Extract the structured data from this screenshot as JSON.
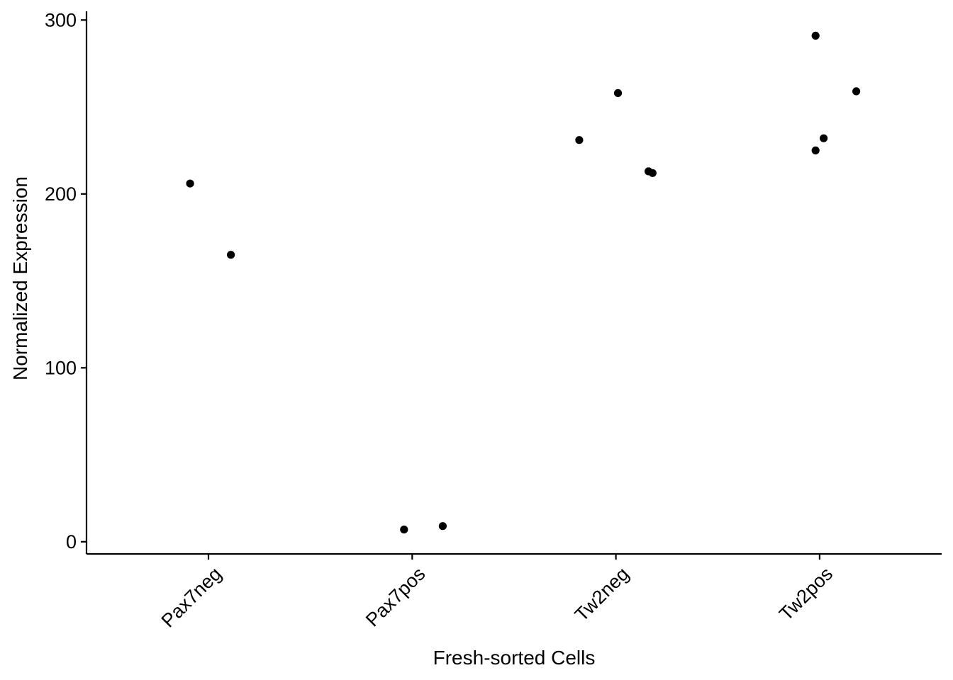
{
  "chart_data": {
    "type": "scatter",
    "title": "",
    "xlabel": "Fresh-sorted Cells",
    "ylabel": "Normalized Expression",
    "categories": [
      "Pax7neg",
      "Pax7pos",
      "Tw2neg",
      "Tw2pos"
    ],
    "ylim": [
      -7,
      305
    ],
    "yticks": [
      0,
      100,
      200,
      300
    ],
    "grid": false,
    "legend": "none",
    "series": [
      {
        "name": "Normalized Expression",
        "color": "#000000",
        "points": [
          {
            "category": "Pax7neg",
            "jitter": -0.09,
            "y": 206
          },
          {
            "category": "Pax7neg",
            "jitter": 0.11,
            "y": 165
          },
          {
            "category": "Pax7pos",
            "jitter": -0.04,
            "y": 7
          },
          {
            "category": "Pax7pos",
            "jitter": 0.15,
            "y": 9
          },
          {
            "category": "Tw2neg",
            "jitter": -0.18,
            "y": 231
          },
          {
            "category": "Tw2neg",
            "jitter": 0.01,
            "y": 258
          },
          {
            "category": "Tw2neg",
            "jitter": 0.16,
            "y": 213
          },
          {
            "category": "Tw2neg",
            "jitter": 0.18,
            "y": 212
          },
          {
            "category": "Tw2pos",
            "jitter": -0.02,
            "y": 291
          },
          {
            "category": "Tw2pos",
            "jitter": 0.18,
            "y": 259
          },
          {
            "category": "Tw2pos",
            "jitter": 0.02,
            "y": 232
          },
          {
            "category": "Tw2pos",
            "jitter": -0.02,
            "y": 225
          }
        ]
      }
    ]
  }
}
